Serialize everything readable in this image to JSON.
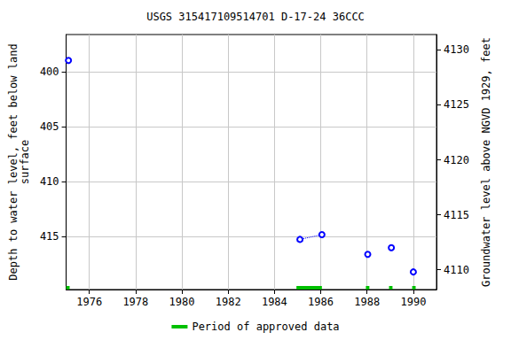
{
  "chart_data": {
    "type": "scatter",
    "title": "USGS 315417109514701 D-17-24 36CCC",
    "y_label": "Depth to water level, feet below land\nsurface",
    "y2_label": "Groundwater level above NGVD 1929, feet",
    "x": [
      1975.1,
      null,
      1985.1,
      1986.05,
      null,
      1988.03,
      null,
      1989.05,
      null,
      1990.0
    ],
    "values": [
      398.95,
      null,
      415.24,
      414.8,
      null,
      416.6,
      null,
      416.0,
      null,
      418.2
    ],
    "color": "#0000ff",
    "marker": "circle",
    "line_style": "dotted",
    "xlim": [
      1975.0,
      1991.0
    ],
    "xticks": [
      1976,
      1978,
      1980,
      1982,
      1984,
      1986,
      1988,
      1990
    ],
    "ylim": [
      396.6,
      419.8
    ],
    "yticks": [
      400,
      405,
      410,
      415
    ],
    "y2lim": [
      4108.2,
      4131.4
    ],
    "y2ticks": [
      4110,
      4115,
      4120,
      4125,
      4130
    ],
    "approved_periods": {
      "name": "Period of approved data",
      "color": "#00c000",
      "ranges": [
        [
          1975.0,
          1975.15
        ],
        [
          1984.95,
          1986.05
        ],
        [
          1987.95,
          1988.1
        ],
        [
          1988.95,
          1989.1
        ],
        [
          1989.95,
          1990.1
        ]
      ]
    },
    "grid": true
  }
}
